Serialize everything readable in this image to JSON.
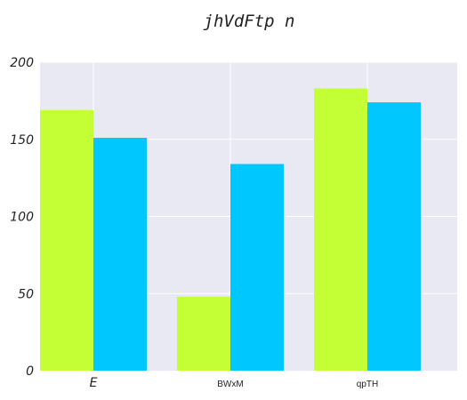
{
  "chart_data": {
    "type": "bar",
    "title": "jhVdFtp n",
    "categories": [
      "E",
      "BWxM",
      "qpTH"
    ],
    "series": [
      {
        "values": [
          169,
          48,
          183
        ],
        "color": "#c3ff34"
      },
      {
        "values": [
          151,
          134,
          174
        ],
        "color": "#00c8ff"
      }
    ],
    "ylim": [
      0,
      200
    ],
    "yticks": [
      "0",
      "50",
      "100",
      "150",
      "200"
    ],
    "grid": true,
    "plot_background": "#e8e9f2",
    "grid_color": "#ffffff"
  }
}
